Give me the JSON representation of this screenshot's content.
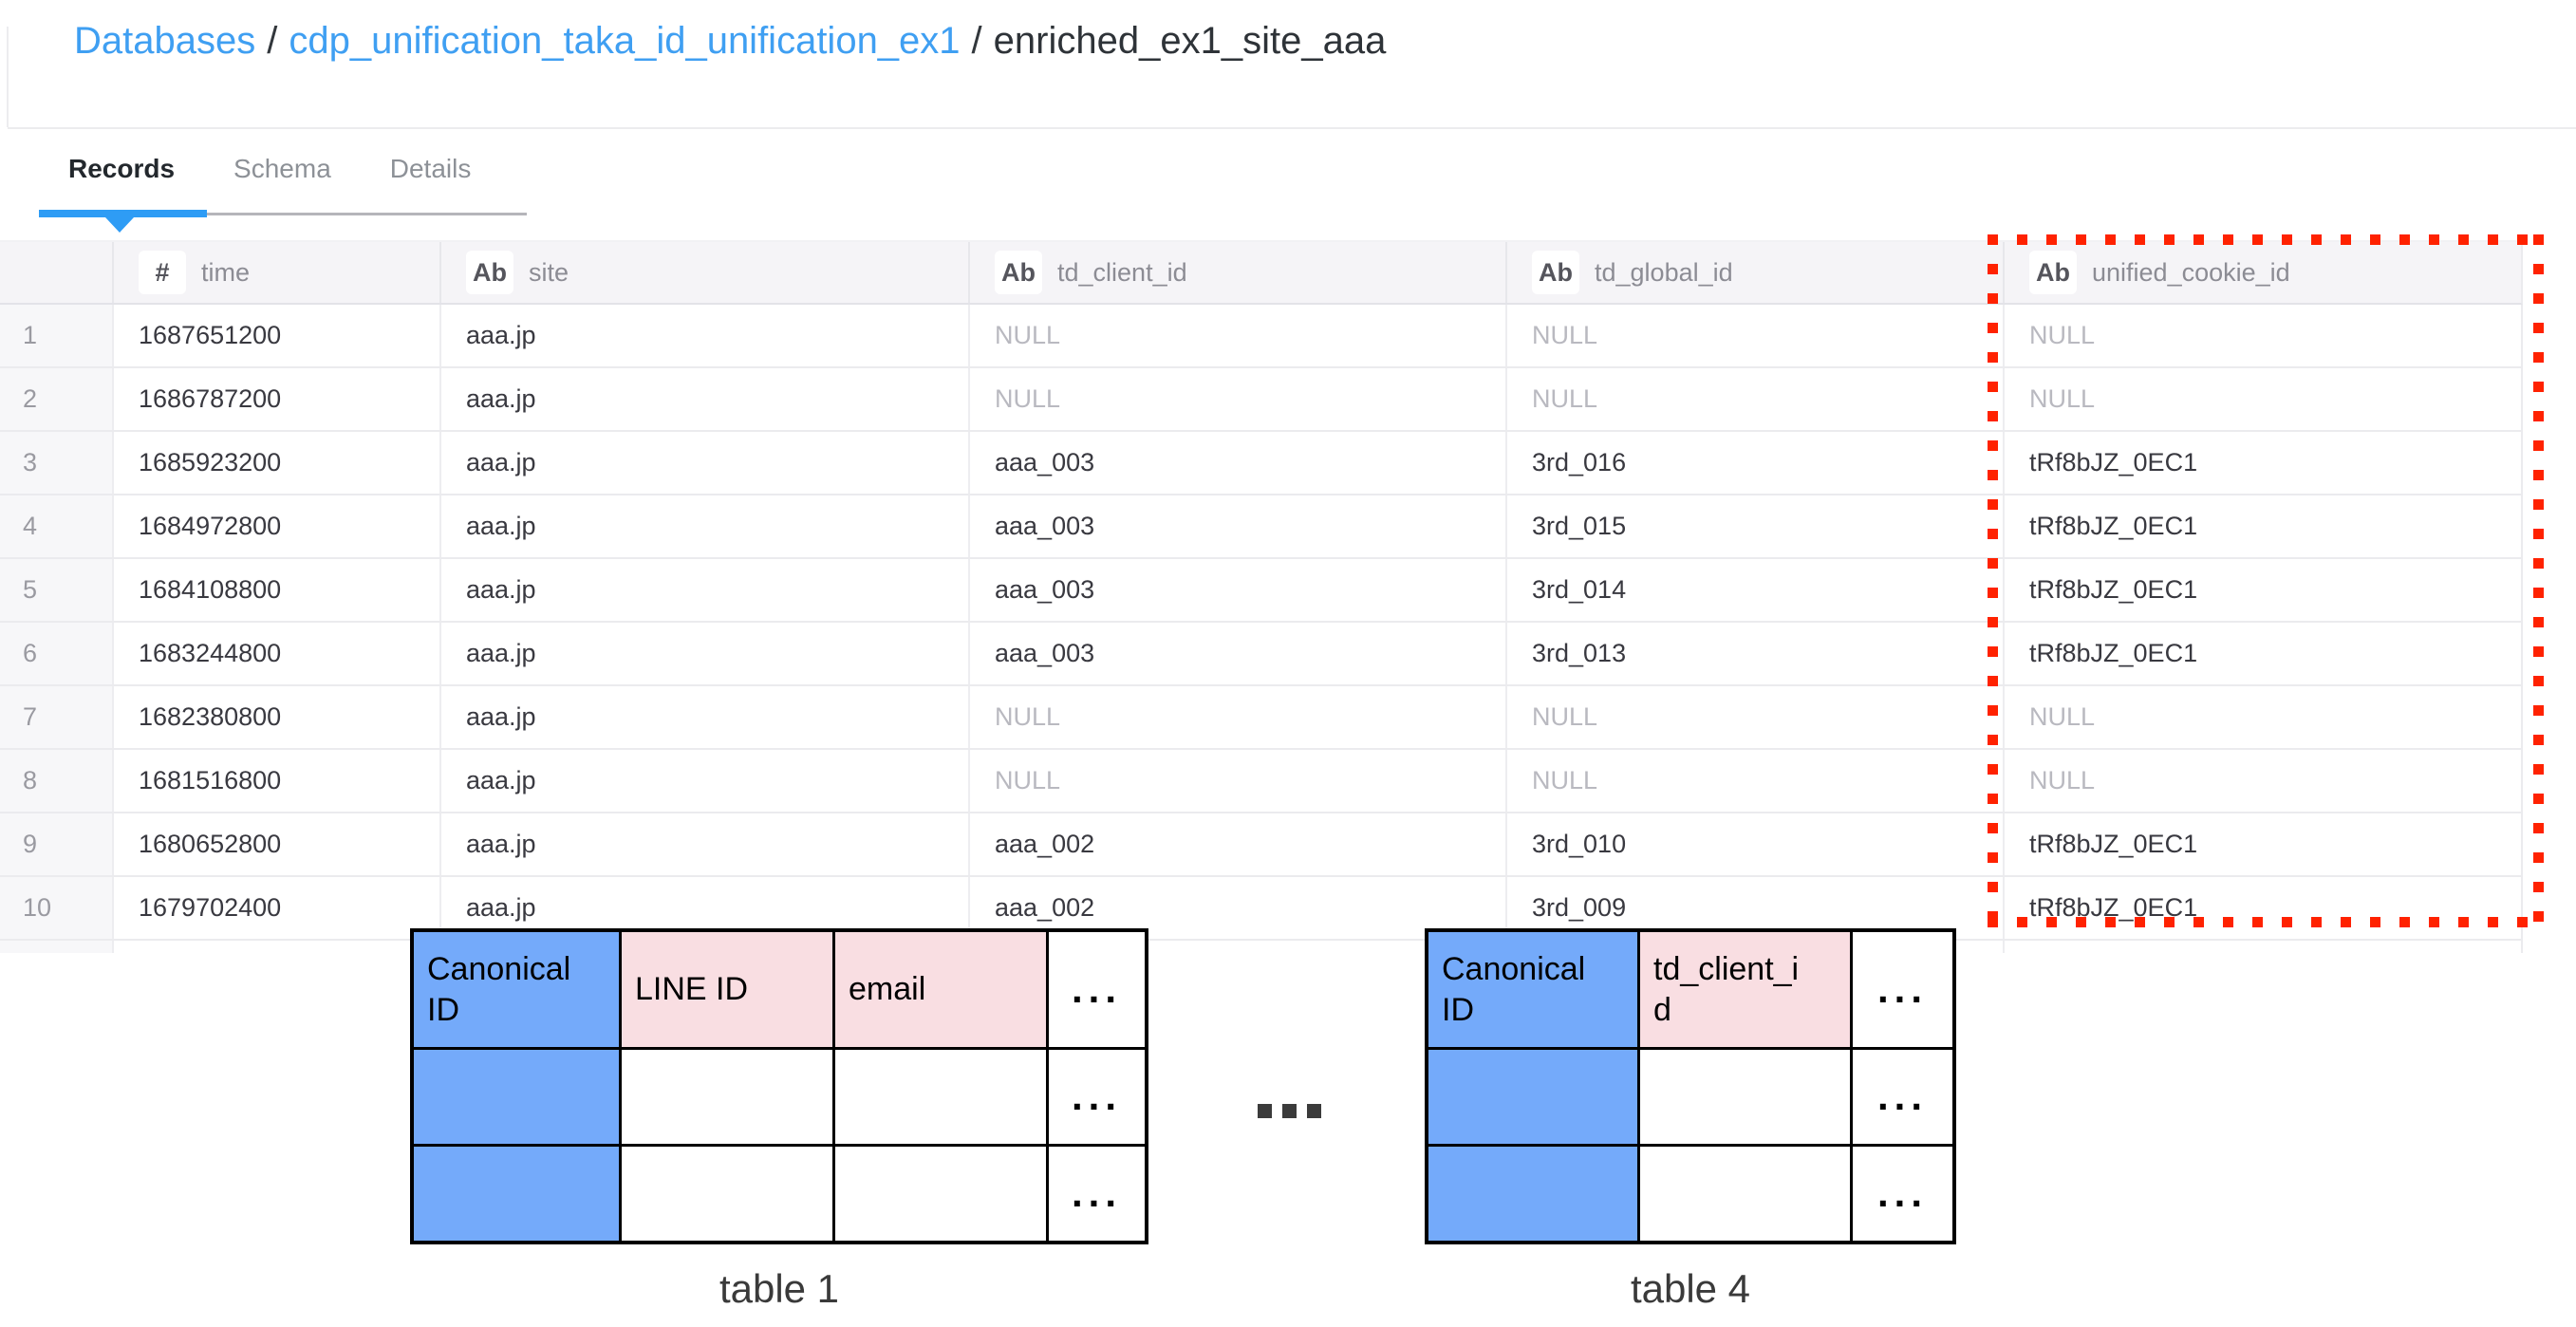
{
  "breadcrumb": {
    "separator": "/",
    "items": [
      {
        "label": "Databases",
        "link": true
      },
      {
        "label": "cdp_unification_taka_id_unification_ex1",
        "link": true
      },
      {
        "label": "enriched_ex1_site_aaa",
        "link": false
      }
    ]
  },
  "tabs": [
    {
      "label": "Records",
      "active": true
    },
    {
      "label": "Schema",
      "active": false
    },
    {
      "label": "Details",
      "active": false
    }
  ],
  "records_table": {
    "columns": [
      {
        "type_icon": "#",
        "label": "time"
      },
      {
        "type_icon": "Ab",
        "label": "site"
      },
      {
        "type_icon": "Ab",
        "label": "td_client_id"
      },
      {
        "type_icon": "Ab",
        "label": "td_global_id"
      },
      {
        "type_icon": "Ab",
        "label": "unified_cookie_id"
      }
    ],
    "null_display": "NULL",
    "rows": [
      {
        "index": "1",
        "values": [
          "1687651200",
          "aaa.jp",
          "NULL",
          "NULL",
          "NULL"
        ]
      },
      {
        "index": "2",
        "values": [
          "1686787200",
          "aaa.jp",
          "NULL",
          "NULL",
          "NULL"
        ]
      },
      {
        "index": "3",
        "values": [
          "1685923200",
          "aaa.jp",
          "aaa_003",
          "3rd_016",
          "tRf8bJZ_0EC1"
        ]
      },
      {
        "index": "4",
        "values": [
          "1684972800",
          "aaa.jp",
          "aaa_003",
          "3rd_015",
          "tRf8bJZ_0EC1"
        ]
      },
      {
        "index": "5",
        "values": [
          "1684108800",
          "aaa.jp",
          "aaa_003",
          "3rd_014",
          "tRf8bJZ_0EC1"
        ]
      },
      {
        "index": "6",
        "values": [
          "1683244800",
          "aaa.jp",
          "aaa_003",
          "3rd_013",
          "tRf8bJZ_0EC1"
        ]
      },
      {
        "index": "7",
        "values": [
          "1682380800",
          "aaa.jp",
          "NULL",
          "NULL",
          "NULL"
        ]
      },
      {
        "index": "8",
        "values": [
          "1681516800",
          "aaa.jp",
          "NULL",
          "NULL",
          "NULL"
        ]
      },
      {
        "index": "9",
        "values": [
          "1680652800",
          "aaa.jp",
          "aaa_002",
          "3rd_010",
          "tRf8bJZ_0EC1"
        ]
      },
      {
        "index": "10",
        "values": [
          "1679702400",
          "aaa.jp",
          "aaa_002",
          "3rd_009",
          "tRf8bJZ_0EC1"
        ]
      }
    ]
  },
  "highlight_box": {
    "highlighted_column": "unified_cookie_id",
    "color": "#ff2200"
  },
  "diagram": {
    "between_tables": "...",
    "colors": {
      "canonical_id_fill": "#74aafa",
      "id_column_fill": "#f9dee2"
    },
    "tables": [
      {
        "caption": "table 1",
        "columns": [
          {
            "label": "Canonical ID",
            "fill": "blue"
          },
          {
            "label": "LINE ID",
            "fill": "pink"
          },
          {
            "label": "email",
            "fill": "pink"
          },
          {
            "label": "...",
            "fill": "white"
          }
        ],
        "rows": [
          [
            {
              "label": "",
              "fill": "blue"
            },
            {
              "label": "",
              "fill": "white"
            },
            {
              "label": "",
              "fill": "white"
            },
            {
              "label": "...",
              "fill": "white"
            }
          ],
          [
            {
              "label": "",
              "fill": "blue"
            },
            {
              "label": "",
              "fill": "white"
            },
            {
              "label": "",
              "fill": "white"
            },
            {
              "label": "...",
              "fill": "white"
            }
          ]
        ]
      },
      {
        "caption": "table 4",
        "columns": [
          {
            "label": "Canonical ID",
            "fill": "blue"
          },
          {
            "label": "td_client_i\nd",
            "fill": "pink"
          },
          {
            "label": "...",
            "fill": "white"
          }
        ],
        "rows": [
          [
            {
              "label": "",
              "fill": "blue"
            },
            {
              "label": "",
              "fill": "white"
            },
            {
              "label": "...",
              "fill": "white"
            }
          ],
          [
            {
              "label": "",
              "fill": "blue"
            },
            {
              "label": "",
              "fill": "white"
            },
            {
              "label": "...",
              "fill": "white"
            }
          ]
        ]
      }
    ]
  },
  "colors": {
    "link_blue": "#3f9ff2",
    "active_tab_underline": "#2e9cf5",
    "highlight_red": "#ff2200",
    "header_bg": "#f5f4f7"
  }
}
